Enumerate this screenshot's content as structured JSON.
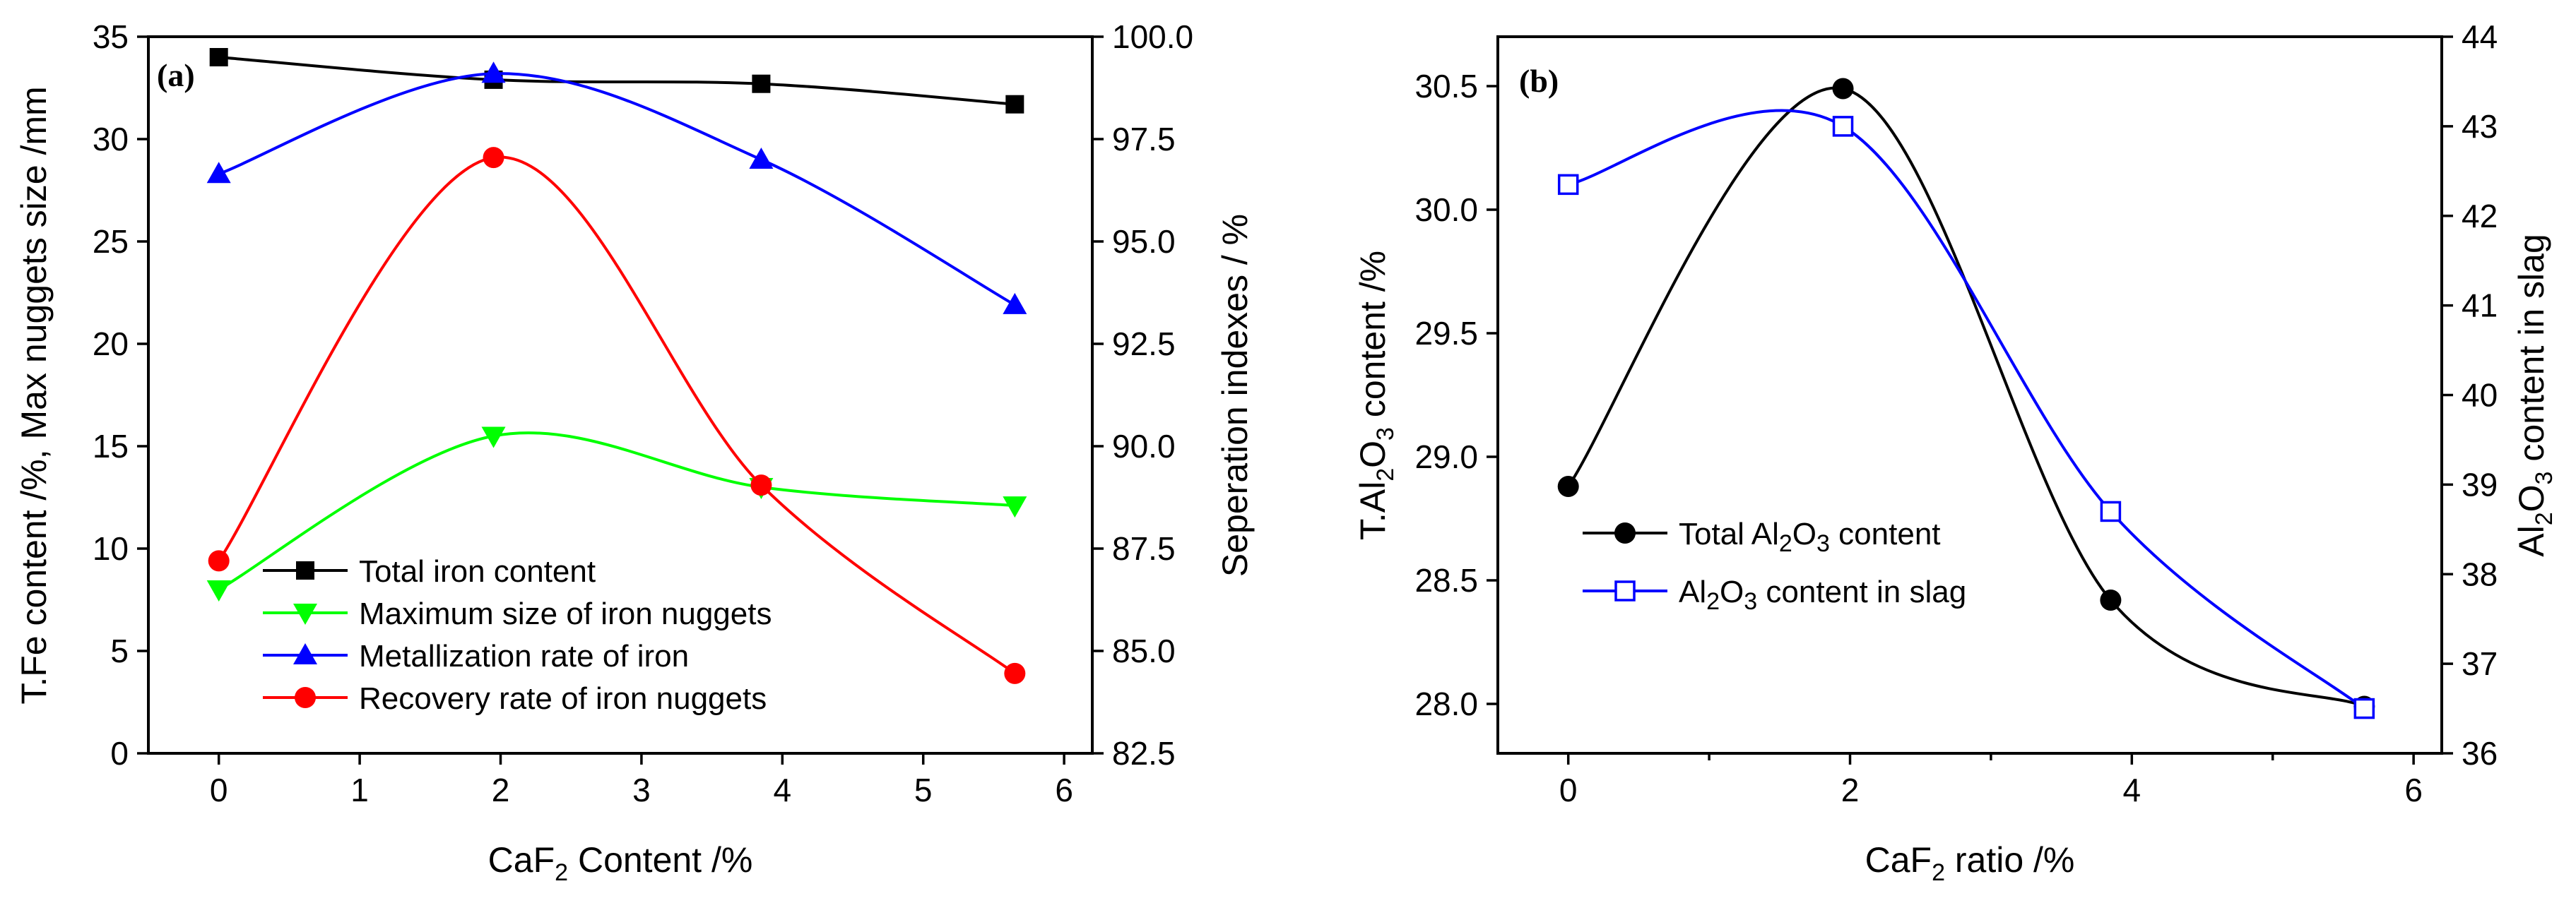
{
  "chart_data": [
    {
      "type": "line",
      "panel_label": "(a)",
      "xlabel": {
        "pre": "CaF",
        "sub": "2",
        "post": " Content /%"
      },
      "ylabel": "T.Fe content /%, Max nuggets size /mm",
      "y2label": "Seperation indexes / %",
      "xlim": [
        -0.5,
        6.2
      ],
      "ylim": [
        0,
        35
      ],
      "y2lim": [
        82.5,
        100.0
      ],
      "xticks": [
        0,
        1,
        2,
        3,
        4,
        5,
        6
      ],
      "yticks": [
        0,
        5,
        10,
        15,
        20,
        25,
        30,
        35
      ],
      "y2ticks": [
        "82.5",
        "85.0",
        "87.5",
        "90.0",
        "92.5",
        "95.0",
        "97.5",
        "100.0"
      ],
      "legend_position": "lower-left",
      "series": [
        {
          "name": "Total iron content",
          "axis": "left",
          "color": "#000000",
          "marker": "square",
          "filled": true,
          "x": [
            0,
            1.95,
            3.85,
            5.65
          ],
          "values": [
            34.0,
            32.9,
            32.7,
            31.7
          ]
        },
        {
          "name": "Maximum size of iron nuggets",
          "axis": "left",
          "color": "#00ff00",
          "marker": "triangle-down",
          "filled": true,
          "x": [
            0,
            1.95,
            3.85,
            5.65
          ],
          "values": [
            8.0,
            15.5,
            13.0,
            12.1
          ]
        },
        {
          "name": "Metallization rate of iron",
          "axis": "left",
          "color": "#0000ff",
          "marker": "triangle-up",
          "filled": true,
          "x": [
            0,
            1.95,
            3.85,
            5.65
          ],
          "values": [
            28.3,
            33.2,
            29.0,
            21.9
          ]
        },
        {
          "name": "Recovery rate of iron nuggets",
          "axis": "left",
          "color": "#ff0000",
          "marker": "circle",
          "filled": true,
          "x": [
            0,
            1.95,
            3.85,
            5.65
          ],
          "values": [
            9.4,
            29.1,
            13.1,
            3.9
          ]
        }
      ]
    },
    {
      "type": "line",
      "panel_label": "(b)",
      "xlabel": {
        "pre": "CaF",
        "sub": "2",
        "post": " ratio /%"
      },
      "ylabel": {
        "pre": "T.Al",
        "sub1": "2",
        "mid": "O",
        "sub2": "3",
        "post": " content /%"
      },
      "y2label": {
        "pre": "Al",
        "sub1": "2",
        "mid": "O",
        "sub2": "3",
        "post": " content in slag"
      },
      "xlim": [
        -0.5,
        6.2
      ],
      "ylim": [
        27.8,
        30.7
      ],
      "y2lim": [
        36,
        44
      ],
      "xticks": [
        0,
        2,
        4,
        6
      ],
      "yticks": [
        "28.0",
        "28.5",
        "29.0",
        "29.5",
        "30.0",
        "30.5"
      ],
      "y2ticks": [
        36,
        37,
        38,
        39,
        40,
        41,
        42,
        43,
        44
      ],
      "legend_position": "center-left",
      "series": [
        {
          "name": {
            "pre": "Total Al",
            "sub1": "2",
            "mid": "O",
            "sub2": "3",
            "post": " content"
          },
          "axis": "left",
          "color": "#000000",
          "marker": "circle",
          "filled": true,
          "x": [
            0,
            1.95,
            3.85,
            5.65
          ],
          "values": [
            28.88,
            30.49,
            28.42,
            27.99
          ]
        },
        {
          "name": {
            "pre": "Al",
            "sub1": "2",
            "mid": "O",
            "sub2": "3",
            "post": " content in slag"
          },
          "axis": "right",
          "color": "#0000ff",
          "marker": "square",
          "filled": false,
          "x": [
            0,
            1.95,
            3.85,
            5.65
          ],
          "values": [
            42.35,
            43.0,
            38.7,
            36.5
          ]
        }
      ]
    }
  ]
}
